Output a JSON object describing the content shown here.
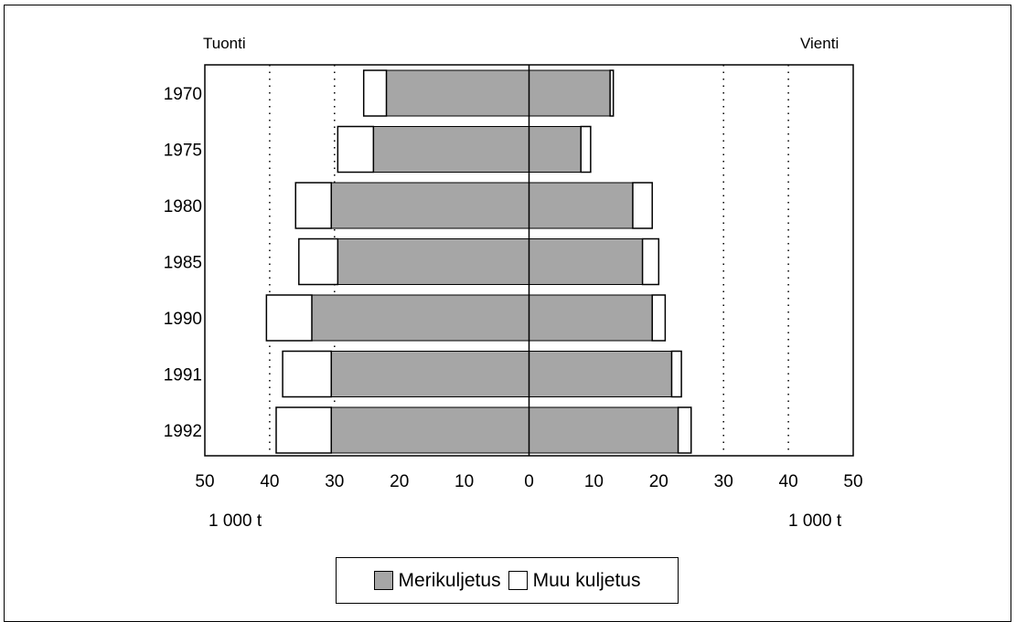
{
  "chart_data": {
    "type": "bar",
    "orientation": "horizontal-diverging",
    "left_label": "Tuonti",
    "right_label": "Vienti",
    "unit_left": "1 000 t",
    "unit_right": "1 000 t",
    "categories": [
      "1970",
      "1975",
      "1980",
      "1985",
      "1990",
      "1991",
      "1992"
    ],
    "xlim": [
      -50,
      50
    ],
    "x_tick_labels": [
      "50",
      "40",
      "30",
      "20",
      "10",
      "0",
      "10",
      "20",
      "30",
      "40",
      "50"
    ],
    "grid": "dotted vertical at 30 and 40",
    "series": [
      {
        "name": "Merikuljetus",
        "side": "Tuonti",
        "values": [
          22,
          24,
          30.5,
          29.5,
          33.5,
          30.5,
          30.5
        ]
      },
      {
        "name": "Muu kuljetus",
        "side": "Tuonti",
        "values": [
          3.5,
          5.5,
          5.5,
          6,
          7,
          7.5,
          8.5
        ]
      },
      {
        "name": "Merikuljetus",
        "side": "Vienti",
        "values": [
          12.5,
          8,
          16,
          17.5,
          19,
          22,
          23
        ]
      },
      {
        "name": "Muu kuljetus",
        "side": "Vienti",
        "values": [
          0.5,
          1.5,
          3,
          2.5,
          2,
          1.5,
          2
        ]
      }
    ],
    "legend": [
      "Merikuljetus",
      "Muu kuljetus"
    ],
    "legend_position": "bottom-center"
  },
  "colors": {
    "sea": "#a6a6a6",
    "other": "#ffffff"
  }
}
